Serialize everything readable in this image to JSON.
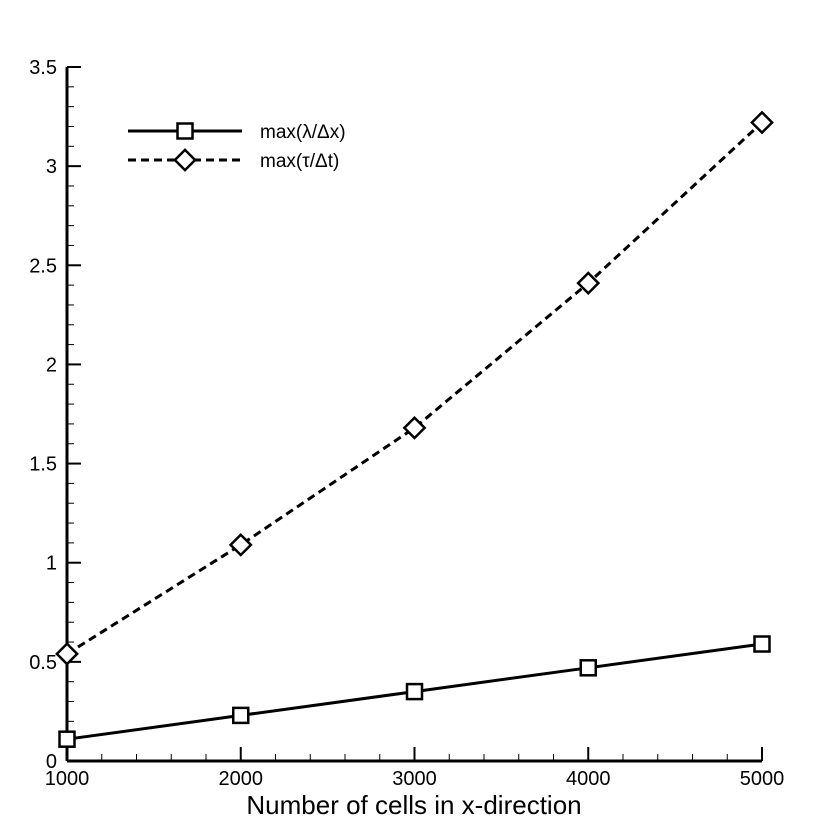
{
  "chart_data": {
    "type": "line",
    "title": "",
    "xlabel": "Number of cells in x-direction",
    "ylabel": "",
    "xlim": [
      1000,
      5000
    ],
    "ylim": [
      0,
      3.5
    ],
    "xticks": [
      1000,
      2000,
      3000,
      4000,
      5000
    ],
    "xtick_labels": [
      "1000",
      "2000",
      "3000",
      "4000",
      "5000"
    ],
    "yticks": [
      0,
      0.5,
      1,
      1.5,
      2,
      2.5,
      3,
      3.5
    ],
    "ytick_labels": [
      "0",
      "0.5",
      "1",
      "1.5",
      "2",
      "2.5",
      "3",
      "3.5"
    ],
    "grid": false,
    "legend_position": "top-left",
    "x": [
      1000,
      2000,
      3000,
      4000,
      5000
    ],
    "series": [
      {
        "name": "max(λ/Δx)",
        "values": [
          0.11,
          0.23,
          0.35,
          0.47,
          0.59
        ],
        "line_style": "solid",
        "marker": "square",
        "color": "#000000"
      },
      {
        "name": "max(τ/Δt)",
        "values": [
          0.54,
          1.09,
          1.68,
          2.41,
          3.22
        ],
        "line_style": "dashed",
        "marker": "diamond",
        "color": "#000000"
      }
    ]
  }
}
